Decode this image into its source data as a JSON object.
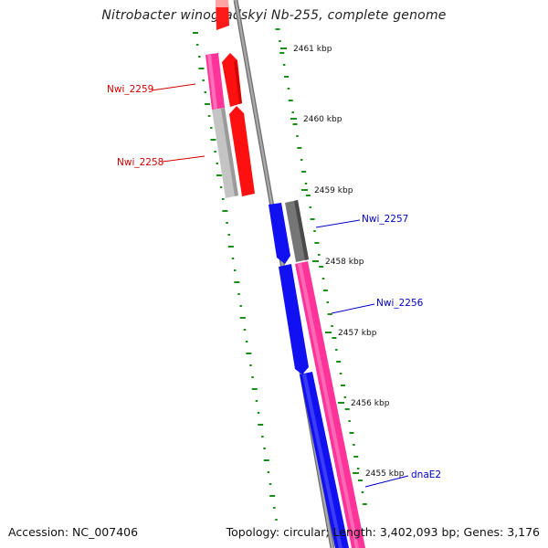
{
  "title": "Nitrobacter winogradskyi Nb-255, complete genome",
  "footer": {
    "accession": "Accession: NC_007406",
    "summary": "Topology: circular; Length: 3,402,093 bp; Genes: 3,176"
  },
  "ticks": [
    "2461 kbp",
    "2460 kbp",
    "2459 kbp",
    "2458 kbp",
    "2457 kbp",
    "2456 kbp",
    "2455 kbp"
  ],
  "gene_labels": [
    {
      "text": "Nwi_2259",
      "color": "#d40000"
    },
    {
      "text": "Nwi_2258",
      "color": "#d40000"
    },
    {
      "text": "Nwi_2257",
      "color": "#0000c8"
    },
    {
      "text": "Nwi_2256",
      "color": "#0000c8"
    },
    {
      "text": "dnaE2",
      "color": "#0000c8"
    }
  ],
  "colors": {
    "backbone": "#8c8c8c",
    "reverse_strand_cds": "#ff0000",
    "forward_strand_cds": "#0000ee",
    "gene_magenta": "#ff3399",
    "gene_grey": "#7a7a7a",
    "gene_light_grey": "#c0c0c0",
    "gc_skew": "#1a8c1a"
  }
}
